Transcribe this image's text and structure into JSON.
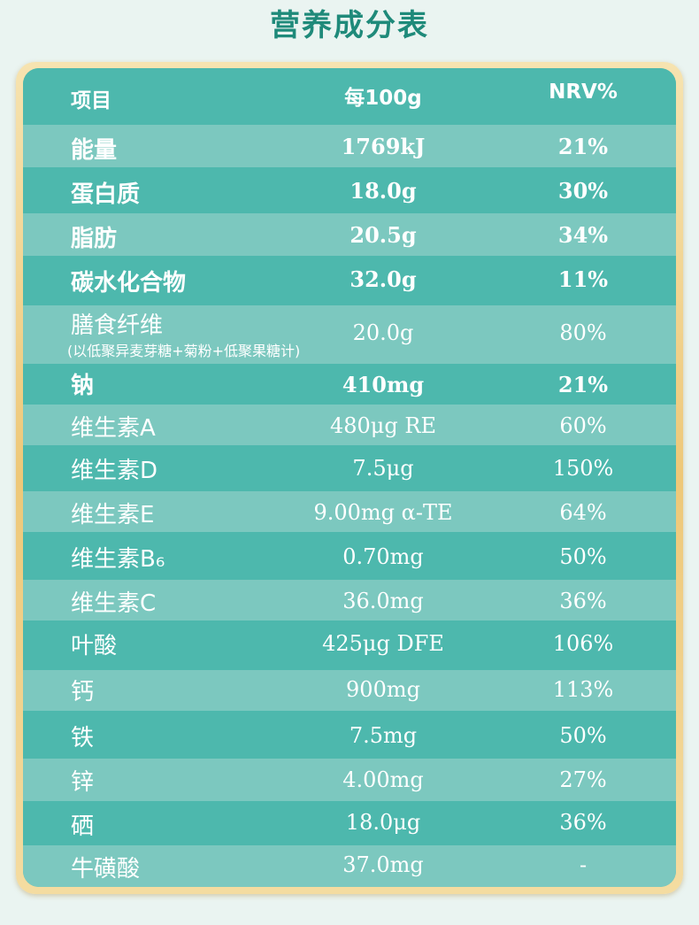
{
  "title": "营养成分表",
  "header": {
    "item": "项目",
    "per100g": "每100g",
    "nrv": "NRV%"
  },
  "rows": [
    {
      "name": "能量",
      "sub": "",
      "amount": "1769kJ",
      "nrv": "21%",
      "bold": true
    },
    {
      "name": "蛋白质",
      "sub": "",
      "amount": "18.0g",
      "nrv": "30%",
      "bold": true
    },
    {
      "name": "脂肪",
      "sub": "",
      "amount": "20.5g",
      "nrv": "34%",
      "bold": true
    },
    {
      "name": "碳水化合物",
      "sub": "",
      "amount": "32.0g",
      "nrv": "11%",
      "bold": true
    },
    {
      "name": "膳食纤维",
      "sub": "(以低聚异麦芽糖+菊粉+低聚果糖计)",
      "amount": "20.0g",
      "nrv": "80%",
      "bold": false
    },
    {
      "name": "钠",
      "sub": "",
      "amount": "410mg",
      "nrv": "21%",
      "bold": true
    },
    {
      "name": "维生素A",
      "sub": "",
      "amount": "480μg RE",
      "nrv": "60%",
      "bold": false
    },
    {
      "name": "维生素D",
      "sub": "",
      "amount": "7.5μg",
      "nrv": "150%",
      "bold": false
    },
    {
      "name": "维生素E",
      "sub": "",
      "amount": "9.00mg α-TE",
      "nrv": "64%",
      "bold": false
    },
    {
      "name": "维生素B₆",
      "sub": "",
      "amount": "0.70mg",
      "nrv": "50%",
      "bold": false
    },
    {
      "name": "维生素C",
      "sub": "",
      "amount": "36.0mg",
      "nrv": "36%",
      "bold": false
    },
    {
      "name": "叶酸",
      "sub": "",
      "amount": "425μg DFE",
      "nrv": "106%",
      "bold": false
    },
    {
      "name": "钙",
      "sub": "",
      "amount": "900mg",
      "nrv": "113%",
      "bold": false
    },
    {
      "name": "铁",
      "sub": "",
      "amount": "7.5mg",
      "nrv": "50%",
      "bold": false
    },
    {
      "name": "锌",
      "sub": "",
      "amount": "4.00mg",
      "nrv": "27%",
      "bold": false
    },
    {
      "name": "硒",
      "sub": "",
      "amount": "18.0μg",
      "nrv": "36%",
      "bold": false
    },
    {
      "name": "牛磺酸",
      "sub": "",
      "amount": "37.0mg",
      "nrv": "-",
      "bold": false
    }
  ]
}
